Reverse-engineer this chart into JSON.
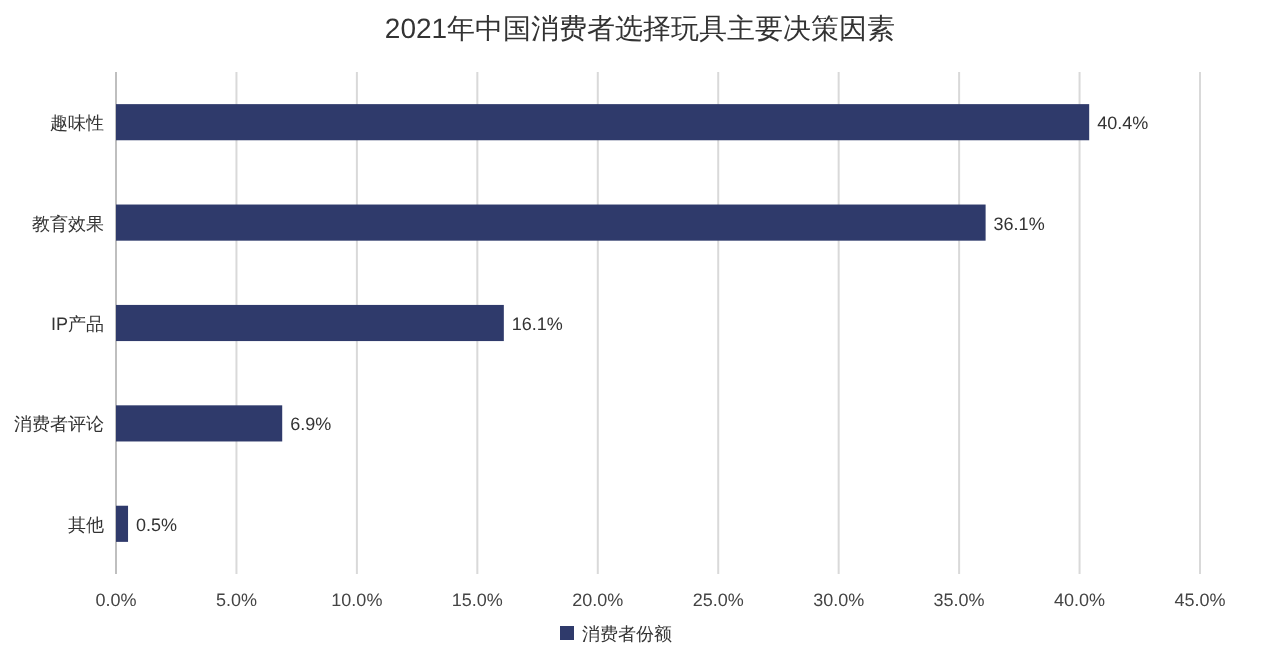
{
  "chart_data": {
    "type": "bar",
    "orientation": "horizontal",
    "title": "2021年中国消费者选择玩具主要决策因素",
    "categories": [
      "趣味性",
      "教育效果",
      "IP产品",
      "消费者评论",
      "其他"
    ],
    "series": [
      {
        "name": "消费者份额",
        "color": "#2f3a6b",
        "values": [
          40.4,
          36.1,
          16.1,
          6.9,
          0.5
        ],
        "value_labels": [
          "40.4%",
          "36.1%",
          "16.1%",
          "6.9%",
          "0.5%"
        ]
      }
    ],
    "xlim": [
      0,
      45
    ],
    "xticks": [
      {
        "value": 0,
        "label": "0.0%"
      },
      {
        "value": 5,
        "label": "5.0%"
      },
      {
        "value": 10,
        "label": "10.0%"
      },
      {
        "value": 15,
        "label": "15.0%"
      },
      {
        "value": 20,
        "label": "20.0%"
      },
      {
        "value": 25,
        "label": "25.0%"
      },
      {
        "value": 30,
        "label": "30.0%"
      },
      {
        "value": 35,
        "label": "35.0%"
      },
      {
        "value": 40,
        "label": "40.0%"
      },
      {
        "value": 45,
        "label": "45.0%"
      }
    ],
    "grid": "x",
    "legend": "bottom"
  }
}
